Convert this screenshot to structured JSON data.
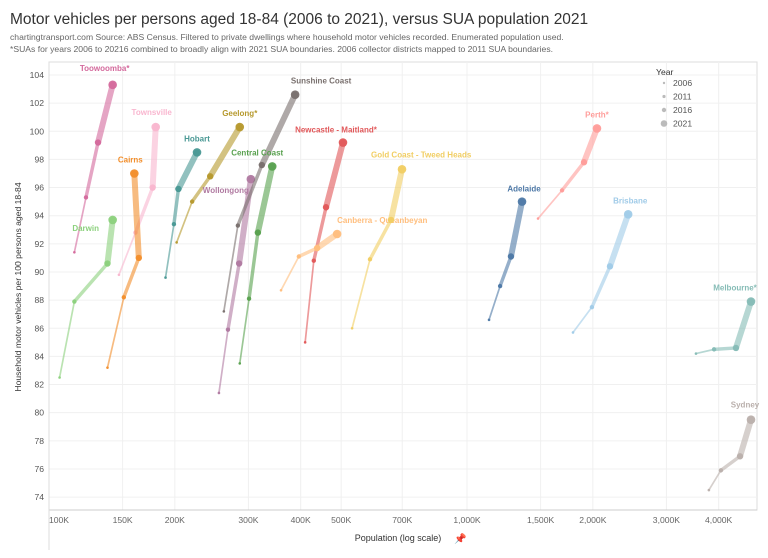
{
  "header": {
    "title": "Motor vehicles per persons aged 18-84 (2006 to 2021), versus SUA population 2021",
    "subtitle1": "chartingtransport.com  Source: ABS Census. Filtered to private dwellings where household motor vehicles recorded. Enumerated population used.",
    "subtitle2": "*SUAs for years 2006 to 20216 combined to broadly align with 2021 SUA boundaries. 2006 collector districts mapped to 2011 SUA boundaries."
  },
  "chart_data": {
    "type": "line",
    "title": "Motor vehicles per persons aged 18-84 (2006 to 2021), versus SUA population 2021",
    "xlabel": "Population (log scale)",
    "ylabel": "Household motor vehicles per 100 persons aged 18-84",
    "x_scale": "log",
    "xlim": [
      96000,
      4900000
    ],
    "ylim": [
      73,
      105
    ],
    "x_ticks": [
      100000,
      150000,
      200000,
      300000,
      400000,
      500000,
      700000,
      1000000,
      1500000,
      2000000,
      3000000,
      4000000
    ],
    "x_tick_labels": [
      "100K",
      "150K",
      "200K",
      "300K",
      "400K",
      "500K",
      "700K",
      "1,000K",
      "1,500K",
      "2,000K",
      "3,000K",
      "4,000K"
    ],
    "y_ticks": [
      74,
      76,
      78,
      80,
      82,
      84,
      86,
      88,
      90,
      92,
      94,
      96,
      98,
      100,
      102,
      104
    ],
    "grid": true,
    "legend": {
      "title": "Year",
      "placement": "top-right",
      "entries": [
        "2006",
        "2011",
        "2016",
        "2021"
      ]
    },
    "years": [
      2006,
      2011,
      2016,
      2021
    ],
    "series": [
      {
        "name": "Toowoomba*",
        "color": "#d4699c",
        "x": [
          115000,
          122600,
          131000,
          142000
        ],
        "y": [
          91.4,
          95.3,
          99.2,
          103.3
        ]
      },
      {
        "name": "Townsville",
        "color": "#f9b6cf",
        "x": [
          147000,
          161000,
          177000,
          180000
        ],
        "y": [
          89.8,
          92.8,
          96.0,
          100.3
        ]
      },
      {
        "name": "Cairns",
        "color": "#f28e2b",
        "x": [
          138000,
          151000,
          164000,
          160000
        ],
        "y": [
          83.2,
          88.2,
          91.0,
          97.0
        ]
      },
      {
        "name": "Darwin",
        "color": "#8cd17d",
        "x": [
          106000,
          115000,
          138000,
          142000
        ],
        "y": [
          82.5,
          87.9,
          90.6,
          93.7
        ]
      },
      {
        "name": "Hobart",
        "color": "#499894",
        "x": [
          190000,
          199000,
          204000,
          226000
        ],
        "y": [
          89.6,
          93.4,
          95.9,
          98.5
        ]
      },
      {
        "name": "Geelong*",
        "color": "#b6992d",
        "x": [
          202000,
          220000,
          243000,
          286000
        ],
        "y": [
          92.1,
          95.0,
          96.8,
          100.3
        ]
      },
      {
        "name": "Wollongong",
        "color": "#b07aa1",
        "x": [
          255000,
          268000,
          285000,
          304000
        ],
        "y": [
          81.4,
          85.9,
          90.6,
          96.6
        ]
      },
      {
        "name": "Sunshine Coast",
        "color": "#79706e",
        "x": [
          262000,
          283000,
          323000,
          388000
        ],
        "y": [
          87.2,
          93.3,
          97.6,
          102.6
        ]
      },
      {
        "name": "Central Coast",
        "color": "#59a14f",
        "x": [
          286000,
          301000,
          316000,
          342000
        ],
        "y": [
          83.5,
          88.1,
          92.8,
          97.5
        ]
      },
      {
        "name": "Newcastle - Maitland*",
        "color": "#e15759",
        "x": [
          410000,
          430000,
          460000,
          505000
        ],
        "y": [
          85.0,
          90.8,
          94.6,
          99.2
        ]
      },
      {
        "name": "Canberra - Queanbeyan",
        "color": "#ffbe7d",
        "x": [
          359000,
          396000,
          438000,
          489000
        ],
        "y": [
          88.7,
          91.1,
          91.7,
          92.7
        ]
      },
      {
        "name": "Gold Coast - Tweed Heads",
        "color": "#f1ce63",
        "x": [
          531000,
          586000,
          658000,
          699000
        ],
        "y": [
          86.0,
          90.9,
          93.7,
          97.3
        ]
      },
      {
        "name": "Adelaide",
        "color": "#4e79a7",
        "x": [
          1129000,
          1200000,
          1274000,
          1354000
        ],
        "y": [
          86.6,
          89.0,
          91.1,
          95.0
        ]
      },
      {
        "name": "Perth*",
        "color": "#ff9d9a",
        "x": [
          1479000,
          1688000,
          1905000,
          2046000
        ],
        "y": [
          93.8,
          95.8,
          97.8,
          100.2
        ]
      },
      {
        "name": "Brisbane",
        "color": "#a0cbe8",
        "x": [
          1793000,
          1990000,
          2198000,
          2430000
        ],
        "y": [
          85.7,
          87.5,
          90.4,
          94.1
        ]
      },
      {
        "name": "Melbourne*",
        "color": "#86bcb6",
        "x": [
          3530000,
          3900000,
          4400000,
          4780000
        ],
        "y": [
          84.2,
          84.5,
          84.6,
          87.9
        ]
      },
      {
        "name": "Sydney",
        "color": "#bab0ac",
        "x": [
          3790000,
          4050000,
          4500000,
          4780000
        ],
        "y": [
          74.5,
          75.9,
          76.9,
          79.5
        ]
      }
    ]
  }
}
